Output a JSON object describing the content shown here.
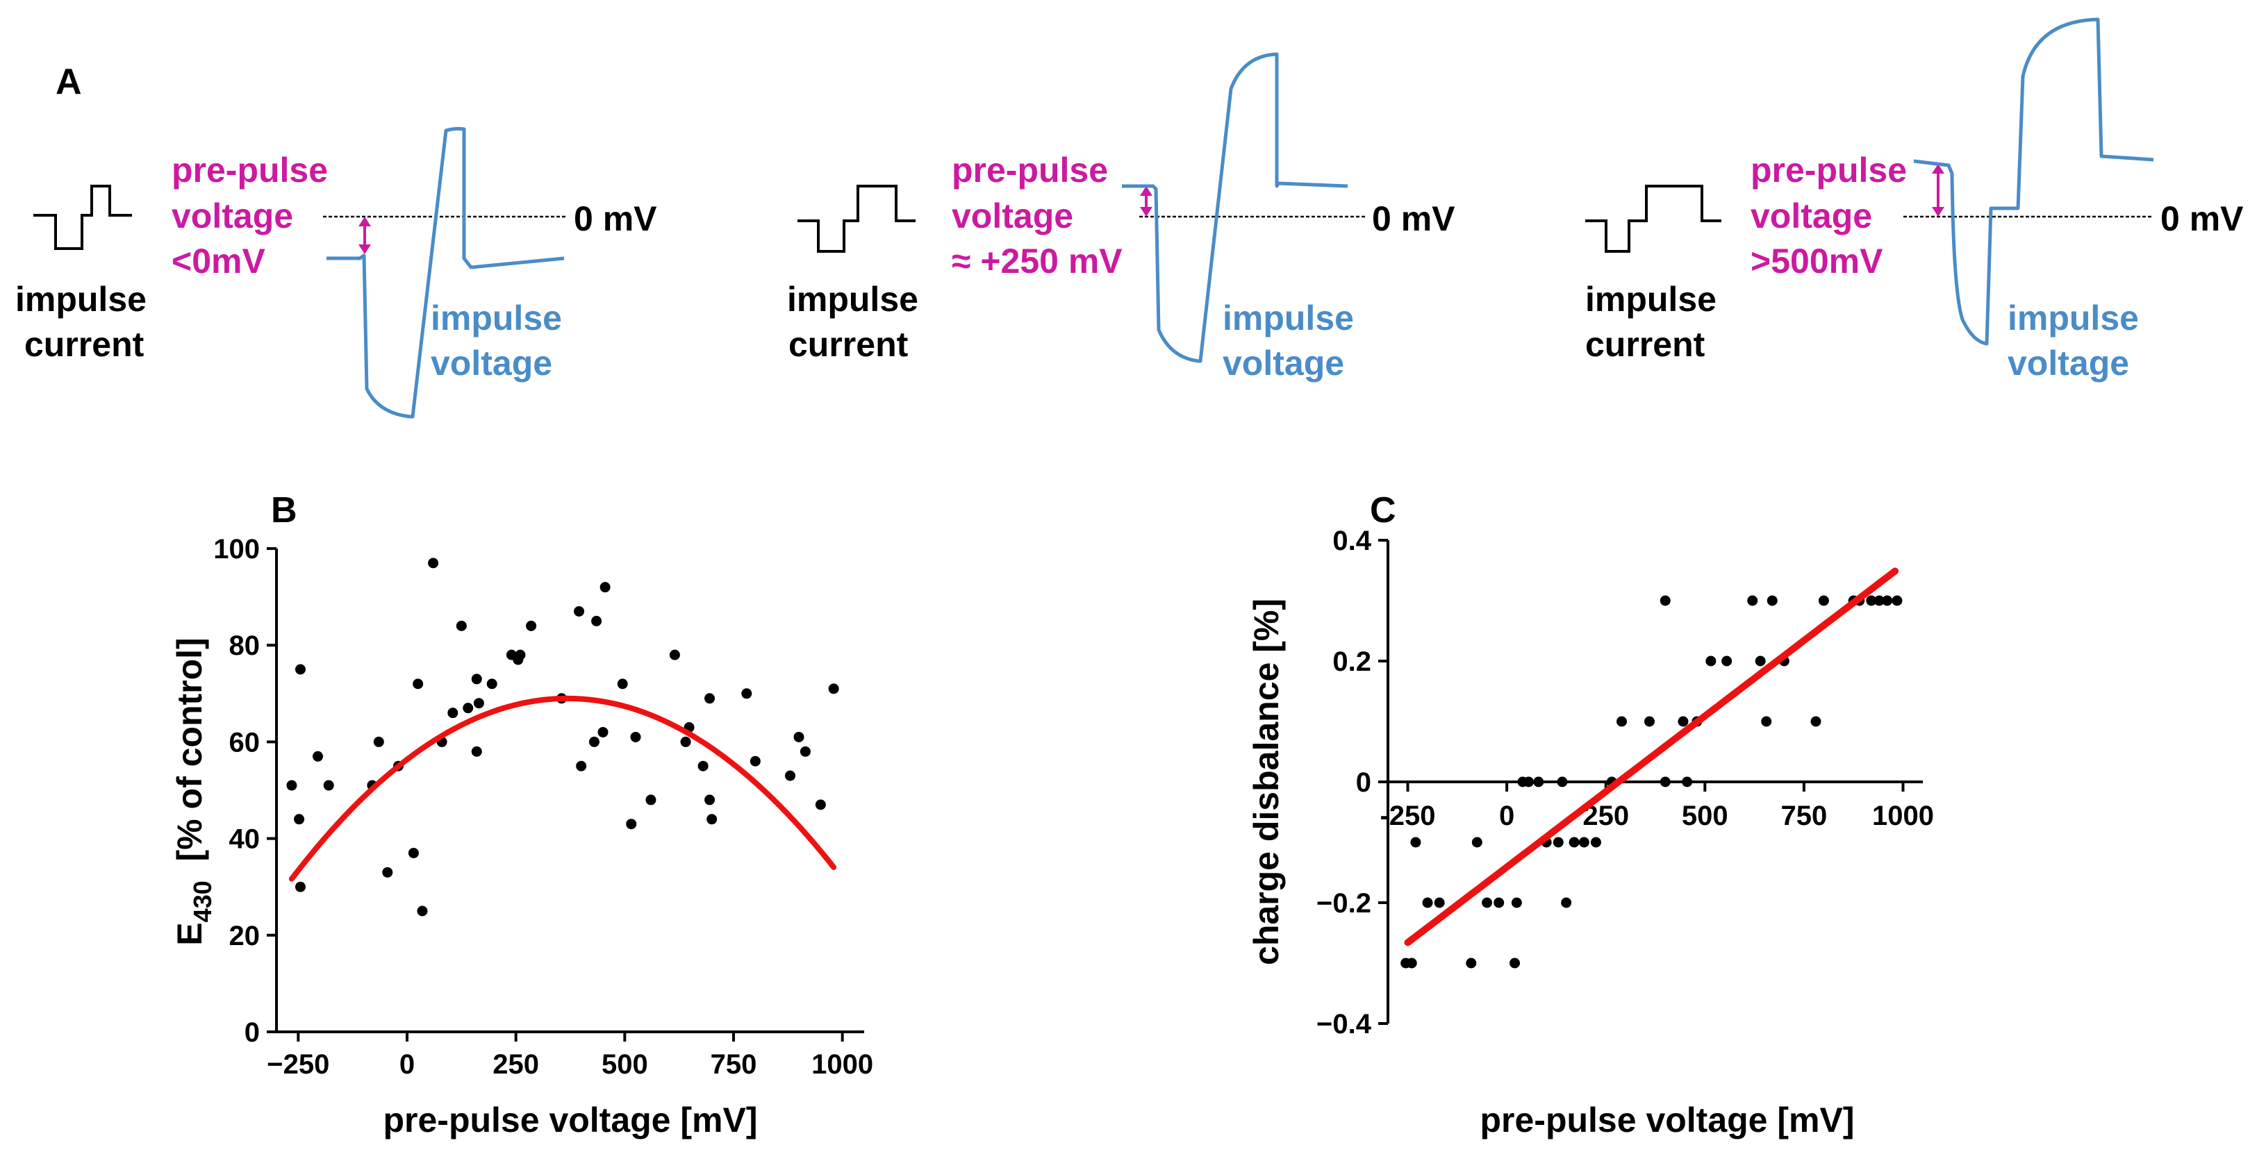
{
  "colors": {
    "pulse": "#000000",
    "voltage": "#4a8cc8",
    "annotation": "#cc1aa0",
    "fit": "#ee1111",
    "points": "#000000"
  },
  "panel_a": {
    "letter": "A",
    "zero_label": "0 mV",
    "current_label_1": "impulse",
    "current_label_2": "current",
    "voltage_label_1": "impulse",
    "voltage_label_2": "voltage",
    "cases": [
      {
        "line1": "pre-pulse",
        "line2": "voltage",
        "line3": "<0mV"
      },
      {
        "line1": "pre-pulse",
        "line2": "voltage",
        "line3": "≈ +250 mV"
      },
      {
        "line1": "pre-pulse",
        "line2": "voltage",
        "line3": ">500mV"
      }
    ]
  },
  "chart_data": [
    {
      "panel": "B",
      "type": "scatter",
      "xlabel": "pre-pulse voltage [mV]",
      "ylabel_main": "E",
      "ylabel_sub": "430",
      "ylabel_rest": "  [% of control]",
      "xlim": [
        -300,
        1050
      ],
      "ylim": [
        0,
        100
      ],
      "xticks": [
        -250,
        0,
        250,
        500,
        750,
        1000
      ],
      "yticks": [
        0,
        20,
        40,
        60,
        80,
        100
      ],
      "xtick_labels": [
        "−250",
        "0",
        "250",
        "500",
        "750",
        "1000"
      ],
      "ytick_labels": [
        "0",
        "20",
        "40",
        "60",
        "80",
        "100"
      ],
      "points": [
        [
          -265,
          51
        ],
        [
          -245,
          75
        ],
        [
          -248,
          44
        ],
        [
          -245,
          30
        ],
        [
          -205,
          57
        ],
        [
          -180,
          51
        ],
        [
          -80,
          51
        ],
        [
          -65,
          60
        ],
        [
          -45,
          33
        ],
        [
          -20,
          55
        ],
        [
          15,
          37
        ],
        [
          25,
          72
        ],
        [
          35,
          25
        ],
        [
          60,
          97
        ],
        [
          80,
          60
        ],
        [
          105,
          66
        ],
        [
          125,
          84
        ],
        [
          140,
          67
        ],
        [
          160,
          73
        ],
        [
          160,
          58
        ],
        [
          165,
          68
        ],
        [
          195,
          72
        ],
        [
          240,
          78
        ],
        [
          255,
          77
        ],
        [
          260,
          78
        ],
        [
          285,
          84
        ],
        [
          355,
          69
        ],
        [
          395,
          87
        ],
        [
          400,
          55
        ],
        [
          430,
          60
        ],
        [
          435,
          85
        ],
        [
          450,
          62
        ],
        [
          455,
          92
        ],
        [
          495,
          72
        ],
        [
          515,
          43
        ],
        [
          525,
          61
        ],
        [
          560,
          48
        ],
        [
          615,
          78
        ],
        [
          640,
          60
        ],
        [
          648,
          63
        ],
        [
          680,
          55
        ],
        [
          695,
          69
        ],
        [
          695,
          48
        ],
        [
          700,
          44
        ],
        [
          780,
          70
        ],
        [
          800,
          56
        ],
        [
          880,
          53
        ],
        [
          900,
          61
        ],
        [
          915,
          58
        ],
        [
          950,
          47
        ],
        [
          980,
          71
        ]
      ],
      "fit": {
        "kind": "quadratic",
        "x_range": [
          -265,
          980
        ],
        "a": -9.32e-05,
        "b": 0.06858,
        "c": 56.37
      }
    },
    {
      "panel": "C",
      "type": "scatter",
      "xlabel": "pre-pulse voltage [mV]",
      "ylabel": "charge disbalance [%]",
      "xlim": [
        -300,
        1050
      ],
      "ylim": [
        -0.4,
        0.4
      ],
      "xticks": [
        -250,
        0,
        250,
        500,
        750,
        1000
      ],
      "yticks": [
        -0.4,
        -0.2,
        0,
        0.2,
        0.4
      ],
      "xtick_labels": [
        "-250",
        "0",
        "250",
        "500",
        "750",
        "1000"
      ],
      "ytick_labels": [
        "−0.4",
        "−0.2",
        "0",
        "0.2",
        "0.4"
      ],
      "points": [
        [
          -255,
          -0.3
        ],
        [
          -240,
          -0.3
        ],
        [
          -230,
          -0.1
        ],
        [
          -200,
          -0.2
        ],
        [
          -170,
          -0.2
        ],
        [
          -90,
          -0.3
        ],
        [
          -75,
          -0.1
        ],
        [
          -50,
          -0.2
        ],
        [
          -20,
          -0.2
        ],
        [
          20,
          -0.3
        ],
        [
          25,
          -0.2
        ],
        [
          40,
          0
        ],
        [
          55,
          0
        ],
        [
          80,
          0
        ],
        [
          100,
          -0.1
        ],
        [
          130,
          -0.1
        ],
        [
          140,
          0
        ],
        [
          150,
          -0.2
        ],
        [
          170,
          -0.1
        ],
        [
          195,
          -0.1
        ],
        [
          225,
          -0.1
        ],
        [
          265,
          0
        ],
        [
          290,
          0.1
        ],
        [
          360,
          0.1
        ],
        [
          400,
          0.3
        ],
        [
          400,
          0
        ],
        [
          445,
          0.1
        ],
        [
          455,
          0
        ],
        [
          480,
          0.1
        ],
        [
          515,
          0.2
        ],
        [
          555,
          0.2
        ],
        [
          620,
          0.3
        ],
        [
          640,
          0.2
        ],
        [
          655,
          0.1
        ],
        [
          670,
          0.3
        ],
        [
          700,
          0.2
        ],
        [
          780,
          0.1
        ],
        [
          800,
          0.3
        ],
        [
          875,
          0.3
        ],
        [
          890,
          0.3
        ],
        [
          920,
          0.3
        ],
        [
          940,
          0.3
        ],
        [
          960,
          0.3
        ],
        [
          985,
          0.3
        ]
      ],
      "fit": {
        "kind": "linear",
        "x_range": [
          -250,
          980
        ],
        "slope": 0.0005,
        "intercept": -0.141
      }
    }
  ]
}
